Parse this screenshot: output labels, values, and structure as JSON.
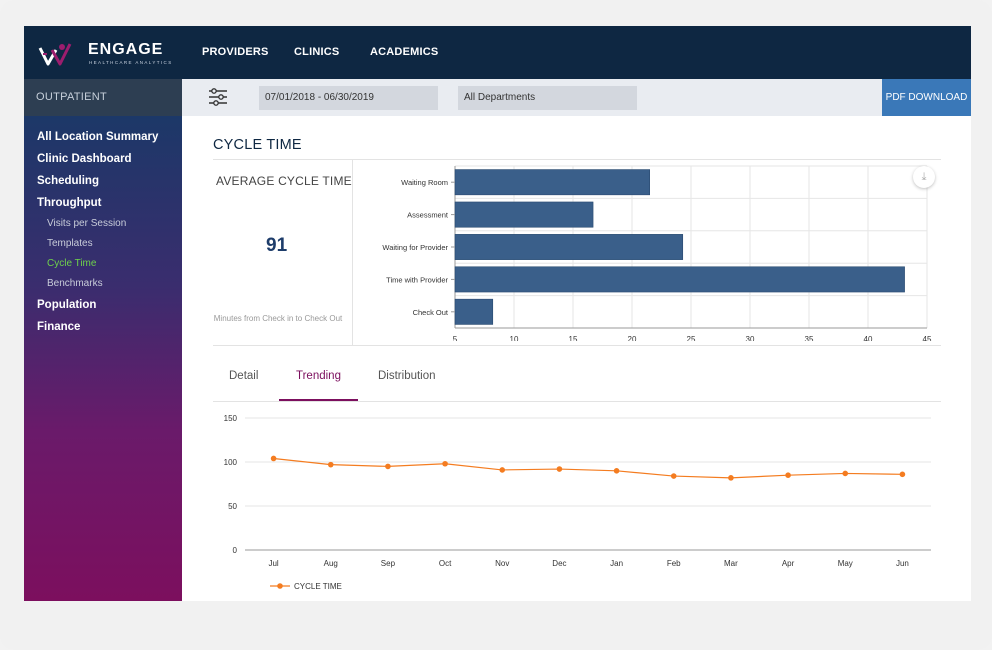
{
  "header": {
    "logo_name": "ENGAGE",
    "logo_sub": "HEALTHCARE ANALYTICS",
    "nav": [
      "PROVIDERS",
      "CLINICS",
      "ACADEMICS"
    ]
  },
  "sidebar": {
    "section": "OUTPATIENT",
    "items": [
      {
        "label": "All Location Summary"
      },
      {
        "label": "Clinic Dashboard"
      },
      {
        "label": "Scheduling"
      },
      {
        "label": "Throughput"
      },
      {
        "label": "Visits per Session"
      },
      {
        "label": "Templates"
      },
      {
        "label": "Cycle Time"
      },
      {
        "label": "Benchmarks"
      },
      {
        "label": "Population"
      },
      {
        "label": "Finance"
      }
    ]
  },
  "filters": {
    "date_range": "07/01/2018 - 06/30/2019",
    "department": "All Departments",
    "pdf_label": "PDF DOWNLOAD"
  },
  "page": {
    "title": "CYCLE TIME",
    "kpi_label": "AVERAGE CYCLE TIME",
    "kpi_value": "91",
    "kpi_note": "Minutes from Check in to Check Out"
  },
  "tabs": [
    "Detail",
    "Trending",
    "Distribution"
  ],
  "colors": {
    "bar": "#3a5f8a",
    "line": "#f47c20",
    "accent": "#7c0f5e",
    "header": "#0e2742"
  },
  "chart_data": [
    {
      "type": "bar",
      "orientation": "horizontal",
      "categories": [
        "Waiting Room",
        "Assessment",
        "Waiting for Provider",
        "Time with Provider",
        "Check Out"
      ],
      "values": [
        21.5,
        16.7,
        24.3,
        43.1,
        8.2
      ],
      "xlim": [
        5,
        45
      ],
      "xticks": [
        5,
        10,
        15,
        20,
        25,
        30,
        35,
        40,
        45
      ],
      "grid": true
    },
    {
      "type": "line",
      "categories": [
        "Jul",
        "Aug",
        "Sep",
        "Oct",
        "Nov",
        "Dec",
        "Jan",
        "Feb",
        "Mar",
        "Apr",
        "May",
        "Jun"
      ],
      "series": [
        {
          "name": "CYCLE TIME",
          "values": [
            104,
            97,
            95,
            98,
            91,
            92,
            90,
            84,
            82,
            85,
            87,
            86
          ]
        }
      ],
      "ylim": [
        0,
        150
      ],
      "yticks": [
        0,
        50,
        100,
        150
      ],
      "legend": "bottom-left"
    }
  ]
}
